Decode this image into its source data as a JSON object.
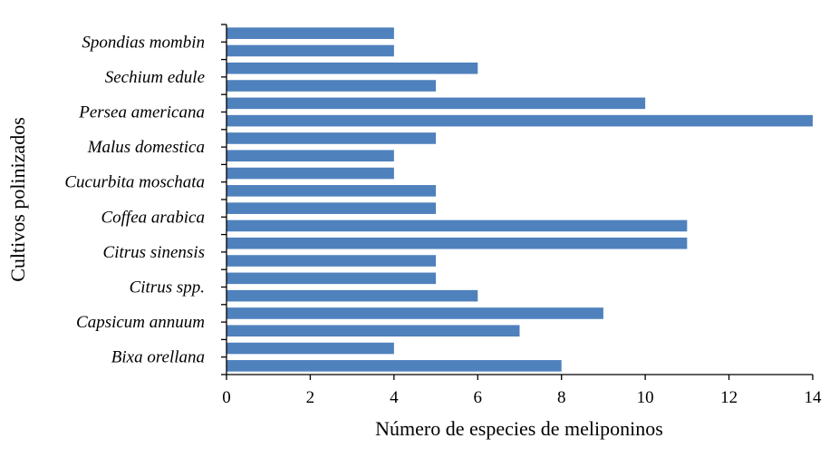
{
  "chart_data": {
    "type": "bar",
    "orientation": "horizontal",
    "xlabel": "Número de especies de meliponinos",
    "ylabel": "Cultivos polinizados",
    "xlim": [
      0,
      14
    ],
    "xticks": [
      "0",
      "2",
      "4",
      "6",
      "8",
      "10",
      "12",
      "14"
    ],
    "labeled_categories": [
      "Bixa orellana",
      "Capsicum annuum",
      "Citrus spp.",
      "Citrus sinensis",
      "Coffea arabica",
      "Cucurbita moschata",
      "Malus domestica",
      "Persea americana",
      "Sechium edule",
      "Spondias mombin"
    ],
    "values_bottom_to_top": [
      8,
      4,
      7,
      9,
      6,
      5,
      5,
      11,
      11,
      5,
      5,
      4,
      4,
      5,
      14,
      10,
      5,
      6,
      4,
      4
    ],
    "bar_color": "#4f81bd",
    "grid": false,
    "legend": "none"
  }
}
